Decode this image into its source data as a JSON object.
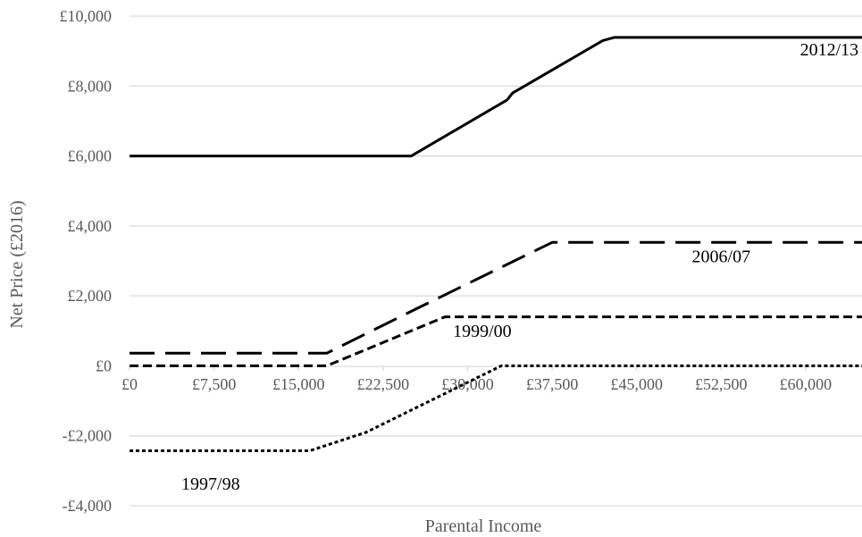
{
  "chart_data": {
    "type": "line",
    "xlabel": "Parental Income",
    "ylabel": "Net Price (£2016)",
    "xlim": [
      0,
      65000
    ],
    "ylim": [
      -4000,
      10000
    ],
    "x_ticks": [
      {
        "value": 0,
        "label": "£0"
      },
      {
        "value": 7500,
        "label": "£7,500"
      },
      {
        "value": 15000,
        "label": "£15,000"
      },
      {
        "value": 22500,
        "label": "£22,500"
      },
      {
        "value": 30000,
        "label": "£30,000"
      },
      {
        "value": 37500,
        "label": "£37,500"
      },
      {
        "value": 45000,
        "label": "£45,000"
      },
      {
        "value": 52500,
        "label": "£52,500"
      },
      {
        "value": 60000,
        "label": "£60,000"
      }
    ],
    "y_ticks": [
      {
        "value": 10000,
        "label": "£10,000"
      },
      {
        "value": 8000,
        "label": "£8,000"
      },
      {
        "value": 6000,
        "label": "£6,000"
      },
      {
        "value": 4000,
        "label": "£4,000"
      },
      {
        "value": 2000,
        "label": "£2,000"
      },
      {
        "value": 0,
        "label": "£0"
      },
      {
        "value": -2000,
        "label": "-£2,000"
      },
      {
        "value": -4000,
        "label": "-£4,000"
      }
    ],
    "grid": true,
    "series": [
      {
        "name": "2012/13",
        "style": "solid",
        "points": [
          [
            0,
            6000
          ],
          [
            25000,
            6000
          ],
          [
            33500,
            7600
          ],
          [
            34000,
            7800
          ],
          [
            42000,
            9300
          ],
          [
            43000,
            9390
          ],
          [
            65000,
            9390
          ]
        ],
        "label_at": [
          62100,
          9060
        ]
      },
      {
        "name": "2006/07",
        "style": "long-dash",
        "points": [
          [
            0,
            360
          ],
          [
            17500,
            360
          ],
          [
            25000,
            1560
          ],
          [
            37500,
            3530
          ],
          [
            65000,
            3530
          ]
        ],
        "label_at": [
          52500,
          3140
        ]
      },
      {
        "name": "1999/00",
        "style": "short-dash",
        "points": [
          [
            0,
            0
          ],
          [
            17500,
            0
          ],
          [
            28000,
            1400
          ],
          [
            65000,
            1400
          ]
        ],
        "label_at": [
          31300,
          1010
        ]
      },
      {
        "name": "1997/98",
        "style": "dotted",
        "points": [
          [
            0,
            -2430
          ],
          [
            16000,
            -2430
          ],
          [
            21000,
            -1900
          ],
          [
            33000,
            0
          ],
          [
            65000,
            0
          ]
        ],
        "label_at": [
          7200,
          -3360
        ]
      }
    ],
    "colors": {
      "line": "#000000",
      "grid": "#d9d9d9",
      "text": "#595959"
    }
  }
}
